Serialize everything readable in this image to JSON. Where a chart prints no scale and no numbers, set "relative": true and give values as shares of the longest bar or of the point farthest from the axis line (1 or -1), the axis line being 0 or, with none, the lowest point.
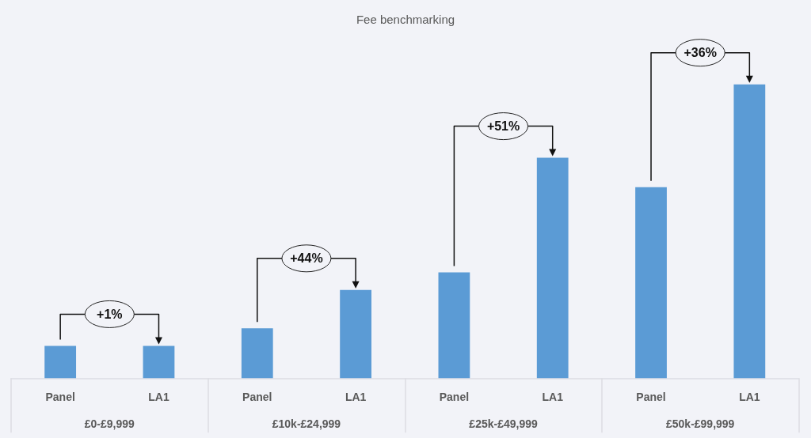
{
  "chart_data": {
    "type": "bar",
    "title": "Fee benchmarking",
    "categories": [
      "Panel",
      "LA1",
      "Panel",
      "LA1",
      "Panel",
      "LA1",
      "Panel",
      "LA1"
    ],
    "values": [
      0.11,
      0.11,
      0.17,
      0.3,
      0.36,
      0.75,
      0.65,
      1
    ],
    "color": "#5b9bd5",
    "relative": true,
    "annotations": [
      "+1%",
      "+44%",
      "+51%",
      "+36%",
      "£0-£9,999",
      "£10k-£24,999",
      "£25k-£49,999",
      "£50k-£99,999"
    ]
  }
}
